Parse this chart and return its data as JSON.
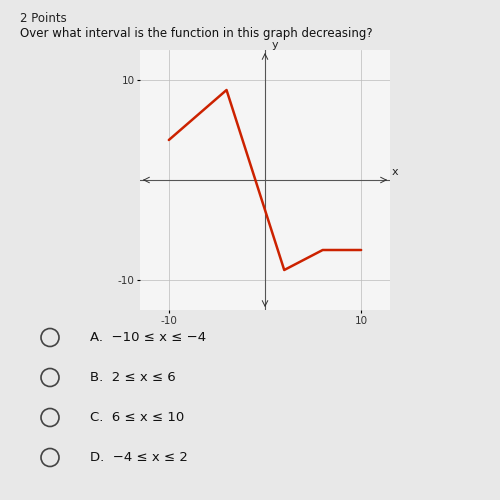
{
  "title": "2 Points",
  "question": "Over what interval is the function in this graph decreasing?",
  "graph": {
    "x_points": [
      -10,
      -4,
      2,
      6,
      10
    ],
    "y_points": [
      4,
      9,
      -9,
      -7,
      -7
    ],
    "line_color": "#cc2200",
    "line_width": 1.8,
    "xlim": [
      -13,
      13
    ],
    "ylim": [
      -13,
      13
    ],
    "xtick_vals": [
      -10,
      10
    ],
    "ytick_vals": [
      -10,
      10
    ],
    "grid_color": "#bbbbbb",
    "grid_step": 2
  },
  "choices": [
    "A.  −10 ≤ x ≤ −4",
    "B.  2 ≤ x ≤ 6",
    "C.  6 ≤ x ≤ 10",
    "D.  −4 ≤ x ≤ 2"
  ],
  "bg_color": "#e8e8e8",
  "plot_bg": "#f5f5f5"
}
